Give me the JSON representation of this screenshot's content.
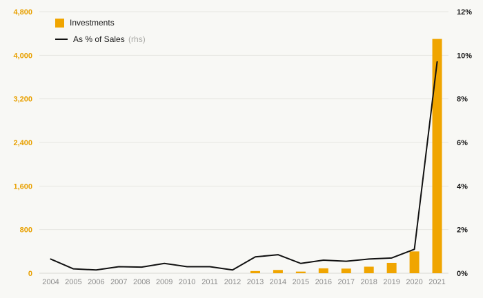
{
  "chart_data": {
    "type": "bar+line",
    "title": "",
    "categories": [
      "2004",
      "2005",
      "2006",
      "2007",
      "2008",
      "2009",
      "2010",
      "2011",
      "2012",
      "2013",
      "2014",
      "2015",
      "2016",
      "2017",
      "2018",
      "2019",
      "2020",
      "2021"
    ],
    "series": [
      {
        "name": "Investments",
        "type": "bar",
        "axis": "left",
        "color": "#F0A500",
        "values": [
          0,
          0,
          0,
          0,
          0,
          0,
          0,
          0,
          0,
          40,
          60,
          30,
          90,
          85,
          120,
          190,
          400,
          4300
        ]
      },
      {
        "name": "As % of Sales",
        "suffix": "(rhs)",
        "type": "line",
        "axis": "right",
        "color": "#111111",
        "values": [
          0.65,
          0.2,
          0.15,
          0.3,
          0.28,
          0.45,
          0.3,
          0.3,
          0.15,
          0.75,
          0.85,
          0.45,
          0.6,
          0.55,
          0.65,
          0.7,
          1.1,
          9.7
        ]
      }
    ],
    "left_axis": {
      "min": 0,
      "max": 4800,
      "step": 800,
      "labels": [
        "0",
        "800",
        "1,600",
        "2,400",
        "3,200",
        "4,000",
        "4,800"
      ],
      "color": "#E8A000"
    },
    "right_axis": {
      "min": 0,
      "max": 12,
      "step": 2,
      "labels": [
        "0%",
        "2%",
        "4%",
        "6%",
        "8%",
        "10%",
        "12%"
      ],
      "color": "#1a1a1a"
    },
    "grid": true,
    "legend_position": "top-left",
    "colors": {
      "background": "#f8f8f5",
      "gridline": "#e6e6e1",
      "baseline": "#d9d9d4",
      "x_tick_label": "#8c8c8c"
    }
  }
}
